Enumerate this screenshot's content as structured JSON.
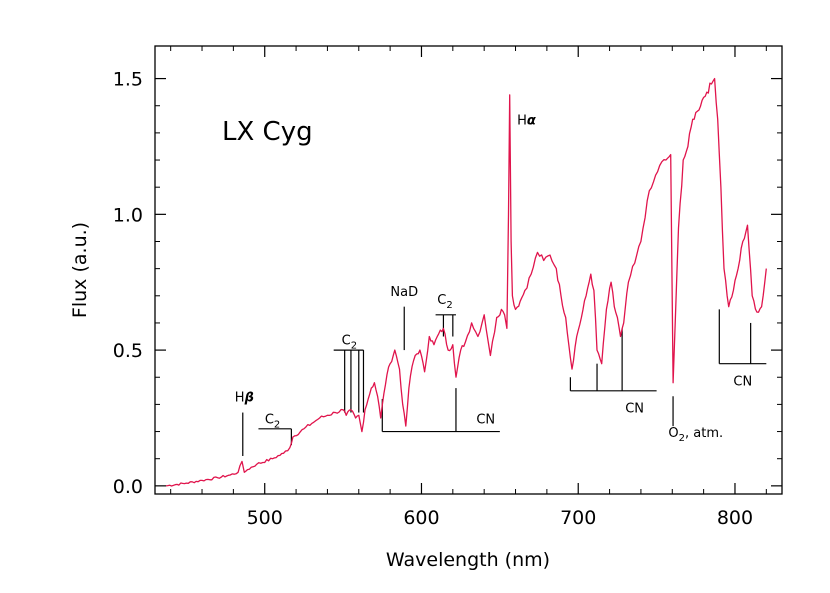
{
  "chart_data": {
    "type": "line",
    "title": "LX Cyg",
    "xlabel": "Wavelength (nm)",
    "ylabel": "Flux (a.u.)",
    "xlim": [
      430,
      830
    ],
    "ylim": [
      -0.03,
      1.62
    ],
    "x_ticks": [
      500,
      600,
      700,
      800
    ],
    "x_tick_labels": [
      "500",
      "600",
      "700",
      "800"
    ],
    "y_ticks": [
      0.0,
      0.5,
      1.0,
      1.5
    ],
    "y_tick_labels": [
      "0.0",
      "0.5",
      "1.0",
      "1.5"
    ],
    "line_color": "#e0144c",
    "series": [
      {
        "name": "LX Cyg spectrum",
        "x": [
          437,
          450,
          460,
          470,
          478,
          483,
          485.5,
          487,
          489,
          495,
          505,
          512,
          516,
          518,
          525,
          530,
          535,
          540,
          545,
          550,
          552,
          555,
          558,
          560,
          562,
          564,
          566,
          568,
          570,
          572,
          574,
          576,
          578,
          580,
          583,
          586,
          588,
          590,
          592,
          594,
          596,
          599,
          602,
          605,
          608,
          611,
          614,
          617,
          620,
          622,
          625,
          628,
          632,
          636,
          640,
          644,
          648,
          651,
          653,
          654.5,
          655.5,
          656.3,
          657.2,
          658,
          660,
          663,
          666,
          670,
          674,
          678,
          682,
          686,
          689,
          692,
          694,
          696,
          699,
          702,
          705,
          708,
          710,
          712,
          715,
          718,
          721,
          723,
          725,
          727,
          729,
          732,
          736,
          740,
          744,
          748,
          752,
          756,
          759,
          760.5,
          762,
          764,
          767,
          770,
          773,
          776,
          779,
          782,
          785,
          787,
          789,
          791,
          793,
          796,
          799,
          802,
          805,
          808,
          811,
          814,
          817,
          820
        ],
        "y": [
          0.0,
          0.01,
          0.02,
          0.03,
          0.04,
          0.05,
          0.09,
          0.05,
          0.06,
          0.08,
          0.1,
          0.12,
          0.14,
          0.18,
          0.21,
          0.23,
          0.25,
          0.26,
          0.27,
          0.28,
          0.26,
          0.28,
          0.25,
          0.26,
          0.2,
          0.28,
          0.32,
          0.36,
          0.38,
          0.33,
          0.25,
          0.34,
          0.41,
          0.45,
          0.5,
          0.43,
          0.3,
          0.22,
          0.36,
          0.44,
          0.48,
          0.5,
          0.42,
          0.55,
          0.52,
          0.56,
          0.58,
          0.5,
          0.52,
          0.4,
          0.5,
          0.53,
          0.6,
          0.55,
          0.63,
          0.48,
          0.62,
          0.65,
          0.63,
          0.58,
          1.0,
          1.44,
          0.9,
          0.7,
          0.65,
          0.68,
          0.72,
          0.78,
          0.86,
          0.83,
          0.85,
          0.8,
          0.7,
          0.62,
          0.52,
          0.43,
          0.55,
          0.62,
          0.7,
          0.78,
          0.72,
          0.5,
          0.45,
          0.65,
          0.75,
          0.66,
          0.62,
          0.55,
          0.6,
          0.75,
          0.82,
          0.9,
          1.05,
          1.12,
          1.18,
          1.2,
          1.22,
          0.38,
          0.62,
          0.95,
          1.2,
          1.25,
          1.35,
          1.38,
          1.42,
          1.45,
          1.48,
          1.5,
          1.35,
          1.1,
          0.8,
          0.66,
          0.72,
          0.8,
          0.9,
          0.96,
          0.7,
          0.64,
          0.66,
          0.8
        ]
      }
    ],
    "annotations": [
      {
        "id": "hbeta",
        "label_main": "H",
        "label_greek": "β",
        "sub": "",
        "label_x": 487,
        "label_y": 0.31
      },
      {
        "id": "c2-a",
        "label_main": "C",
        "label_greek": "",
        "sub": "2",
        "label_x": 505,
        "label_y": 0.23
      },
      {
        "id": "c2-b",
        "label_main": "C",
        "label_greek": "",
        "sub": "2",
        "label_x": 554,
        "label_y": 0.52
      },
      {
        "id": "nad",
        "label_main": "NaD",
        "label_greek": "",
        "sub": "",
        "label_x": 589,
        "label_y": 0.7
      },
      {
        "id": "c2-c",
        "label_main": "C",
        "label_greek": "",
        "sub": "2",
        "label_x": 615,
        "label_y": 0.67
      },
      {
        "id": "halpha",
        "label_main": "H",
        "label_greek": "α",
        "sub": "",
        "label_x": 667,
        "label_y": 1.33
      },
      {
        "id": "cn-a",
        "label_main": "CN",
        "label_greek": "",
        "sub": "",
        "label_x": 641,
        "label_y": 0.23
      },
      {
        "id": "cn-b",
        "label_main": "CN",
        "label_greek": "",
        "sub": "",
        "label_x": 736,
        "label_y": 0.27
      },
      {
        "id": "o2",
        "label_main": "O",
        "label_greek": "",
        "sub": "2",
        "label_suffix": ", atm.",
        "label_x": 775,
        "label_y": 0.18
      },
      {
        "id": "cn-c",
        "label_main": "CN",
        "label_greek": "",
        "sub": "",
        "label_x": 805,
        "label_y": 0.37
      }
    ],
    "marker_lines": [
      {
        "id": "hbeta-line",
        "segments": [
          [
            [
              486,
              0.11
            ],
            [
              486,
              0.27
            ]
          ]
        ]
      },
      {
        "id": "c2-a-bracket",
        "segments": [
          [
            [
              496,
              0.21
            ],
            [
              517,
              0.21
            ]
          ],
          [
            [
              517,
              0.21
            ],
            [
              517,
              0.15
            ]
          ]
        ]
      },
      {
        "id": "c2-b-bracket",
        "segments": [
          [
            [
              544,
              0.5
            ],
            [
              563,
              0.5
            ]
          ],
          [
            [
              551,
              0.5
            ],
            [
              551,
              0.27
            ]
          ],
          [
            [
              555,
              0.5
            ],
            [
              555,
              0.27
            ]
          ],
          [
            [
              560,
              0.5
            ],
            [
              560,
              0.27
            ]
          ],
          [
            [
              563,
              0.5
            ],
            [
              563,
              0.27
            ]
          ]
        ]
      },
      {
        "id": "nad-line",
        "segments": [
          [
            [
              589,
              0.66
            ],
            [
              589,
              0.5
            ]
          ]
        ]
      },
      {
        "id": "c2-c-bracket",
        "segments": [
          [
            [
              609,
              0.63
            ],
            [
              622,
              0.63
            ]
          ],
          [
            [
              614,
              0.63
            ],
            [
              614,
              0.55
            ]
          ],
          [
            [
              620,
              0.63
            ],
            [
              620,
              0.55
            ]
          ]
        ]
      },
      {
        "id": "cn-a-bracket",
        "segments": [
          [
            [
              575,
              0.2
            ],
            [
              650,
              0.2
            ]
          ],
          [
            [
              575,
              0.2
            ],
            [
              575,
              0.32
            ]
          ],
          [
            [
              622,
              0.2
            ],
            [
              622,
              0.36
            ]
          ]
        ]
      },
      {
        "id": "cn-b-bracket",
        "segments": [
          [
            [
              695,
              0.35
            ],
            [
              750,
              0.35
            ]
          ],
          [
            [
              695,
              0.35
            ],
            [
              695,
              0.4
            ]
          ],
          [
            [
              712,
              0.35
            ],
            [
              712,
              0.45
            ]
          ],
          [
            [
              728,
              0.35
            ],
            [
              728,
              0.58
            ]
          ]
        ]
      },
      {
        "id": "o2-line",
        "segments": [
          [
            [
              760.5,
              0.33
            ],
            [
              760.5,
              0.22
            ]
          ]
        ]
      },
      {
        "id": "cn-c-bracket",
        "segments": [
          [
            [
              790,
              0.45
            ],
            [
              820,
              0.45
            ]
          ],
          [
            [
              790,
              0.45
            ],
            [
              790,
              0.65
            ]
          ],
          [
            [
              810,
              0.45
            ],
            [
              810,
              0.6
            ]
          ]
        ]
      }
    ]
  }
}
